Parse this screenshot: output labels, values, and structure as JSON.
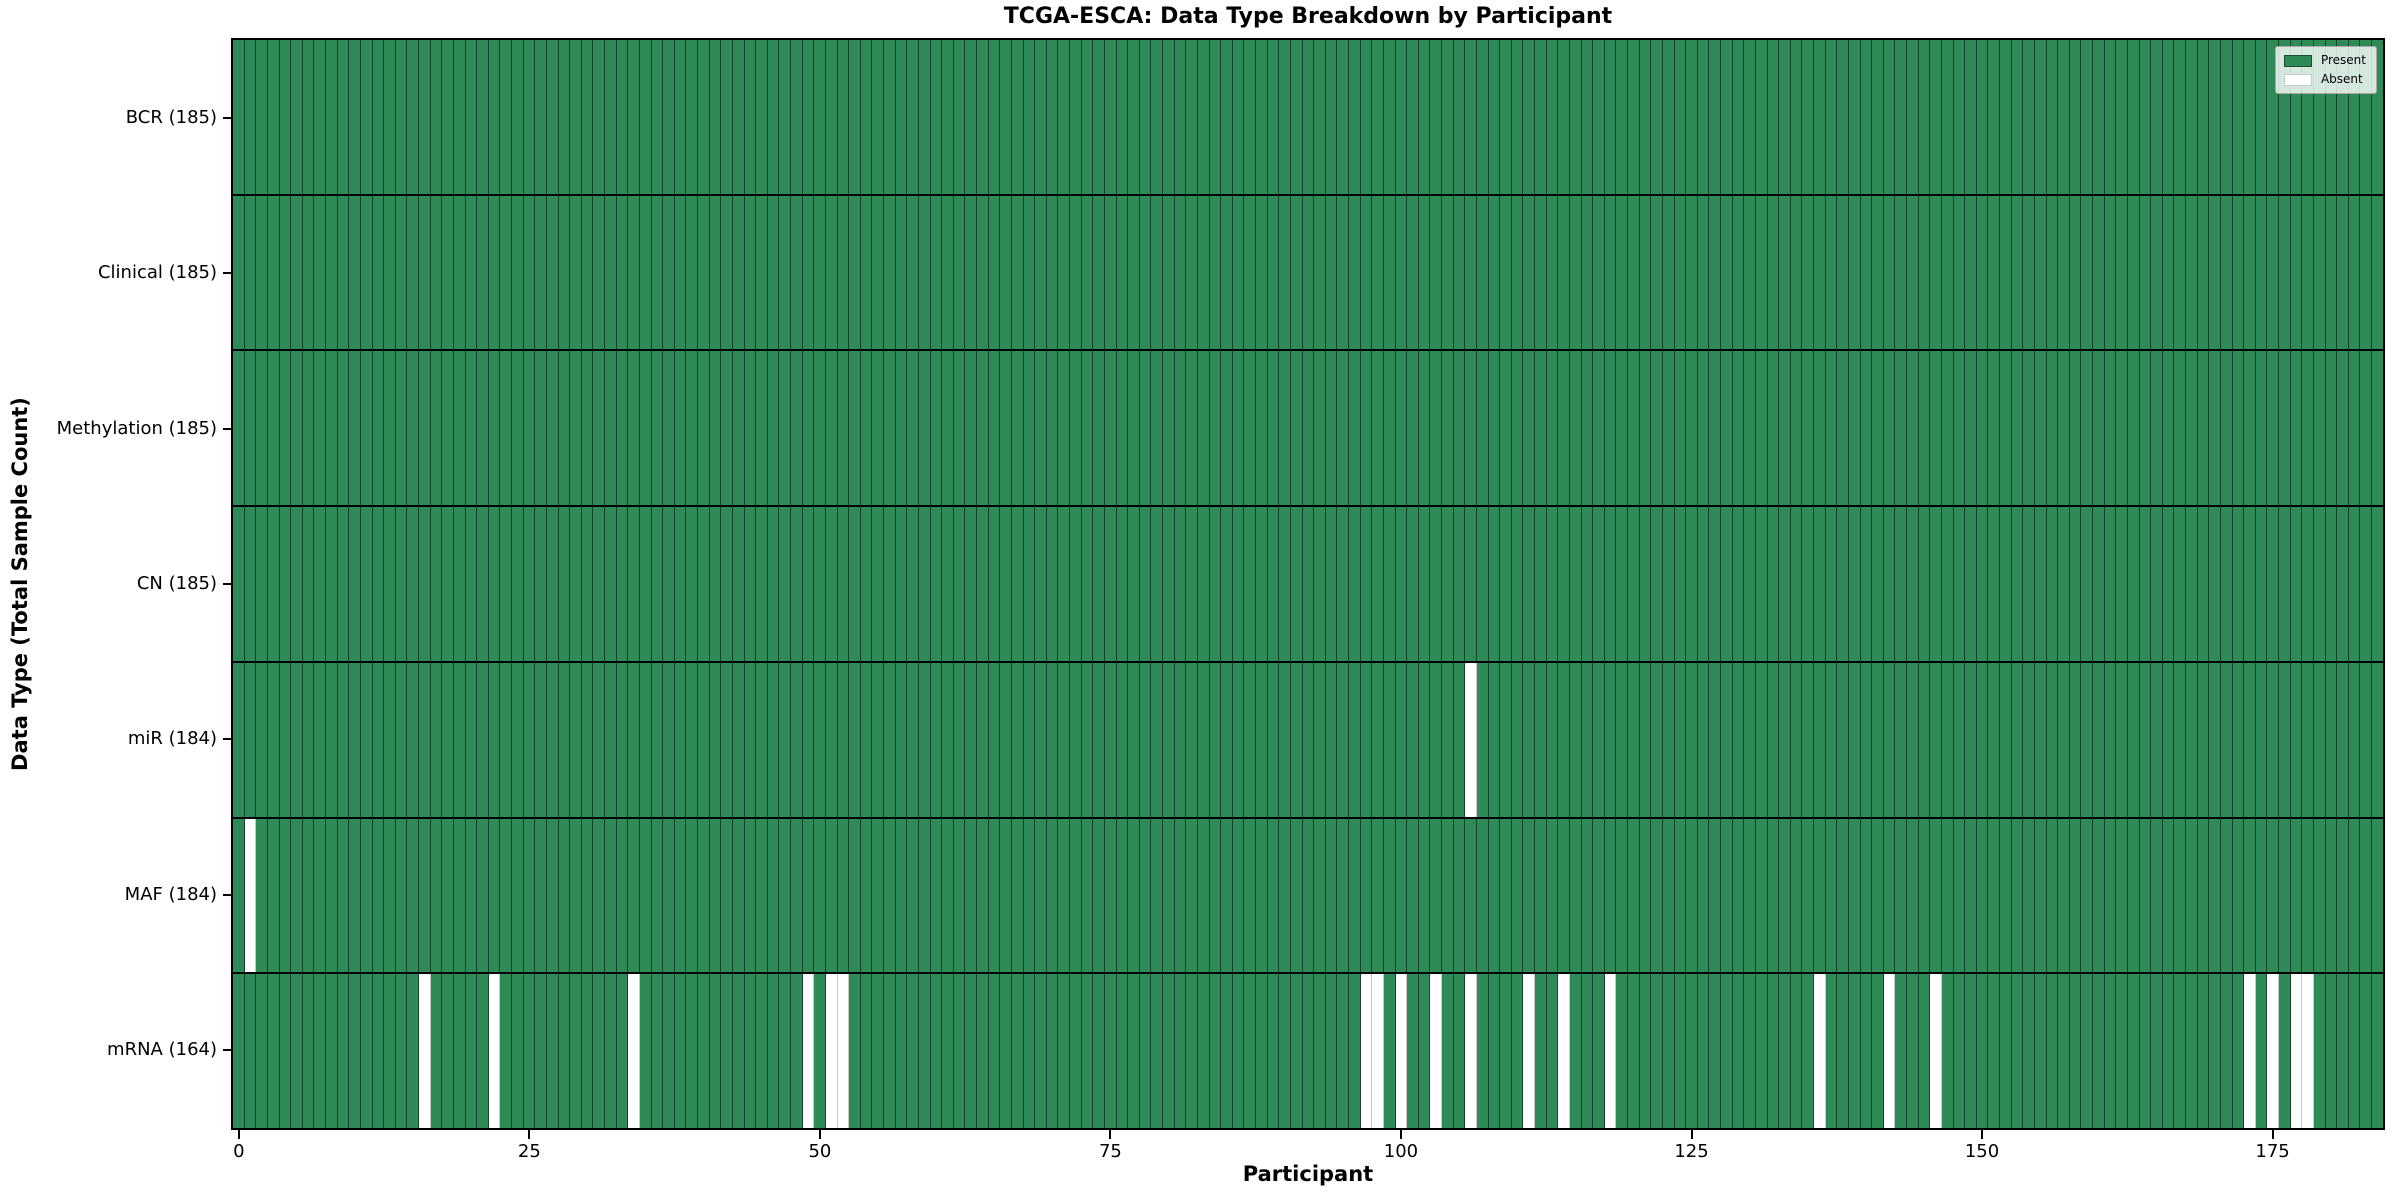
{
  "chart_data": {
    "type": "heatmap",
    "title": "TCGA-ESCA: Data Type Breakdown by Participant",
    "xlabel": "Participant",
    "ylabel": "Data Type (Total Sample Count)",
    "n_participants": 185,
    "x_ticks": [
      0,
      25,
      50,
      75,
      100,
      125,
      150,
      175
    ],
    "xlim": [
      -0.5,
      184.5
    ],
    "grid": false,
    "legend": {
      "position": "upper right",
      "entries": [
        {
          "label": "Present",
          "color": "#2E8B57"
        },
        {
          "label": "Absent",
          "color": "#FFFFFF"
        }
      ]
    },
    "rows": [
      {
        "data_type": "BCR",
        "label": "BCR (185)",
        "present_count": 185,
        "absent_participants": []
      },
      {
        "data_type": "Clinical",
        "label": "Clinical (185)",
        "present_count": 185,
        "absent_participants": []
      },
      {
        "data_type": "Methylation",
        "label": "Methylation (185)",
        "present_count": 185,
        "absent_participants": []
      },
      {
        "data_type": "CN",
        "label": "CN (185)",
        "present_count": 185,
        "absent_participants": []
      },
      {
        "data_type": "miR",
        "label": "miR (184)",
        "present_count": 184,
        "absent_participants": [
          106
        ]
      },
      {
        "data_type": "MAF",
        "label": "MAF (184)",
        "present_count": 184,
        "absent_participants": [
          1
        ]
      },
      {
        "data_type": "mRNA",
        "label": "mRNA (164)",
        "present_count": 164,
        "absent_participants": [
          16,
          22,
          34,
          49,
          51,
          52,
          97,
          98,
          100,
          103,
          106,
          111,
          114,
          118,
          136,
          142,
          146,
          173,
          175,
          177,
          178
        ]
      }
    ],
    "colors": {
      "present": "#2E8B57",
      "absent": "#FFFFFF",
      "cell_edge": "#1C4F33",
      "row_separator": "#000000",
      "axis": "#000000"
    }
  }
}
